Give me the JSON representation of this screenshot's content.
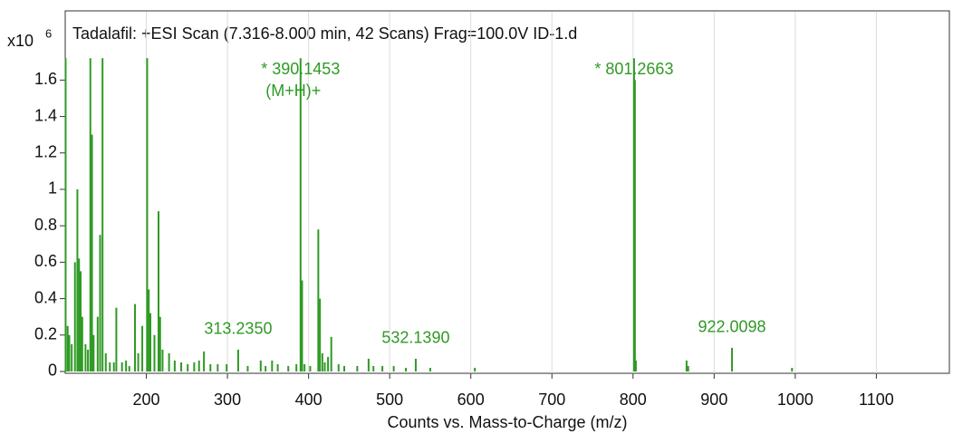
{
  "chart_data": {
    "type": "spectrum",
    "title": "Tadalafil: +ESI Scan (7.316-8.000 min, 42 Scans) Frag=100.0V ID-1.d",
    "y_multiplier": "x10",
    "y_exponent": "6",
    "x_label": "Counts vs. Mass-to-Charge (m/z)",
    "xlim": [
      100,
      1190
    ],
    "ylim": [
      -0.01,
      1.98
    ],
    "xticks": [
      200,
      300,
      400,
      500,
      600,
      700,
      800,
      900,
      1000,
      1100
    ],
    "yticks": [
      0,
      0.2,
      0.4,
      0.6,
      0.8,
      1,
      1.2,
      1.4,
      1.6
    ],
    "grid": "x",
    "series": [
      {
        "color": "#2f9a25",
        "x": [
          100.5,
          103,
          105,
          108,
          112,
          115,
          117,
          119,
          121,
          125,
          128,
          131,
          133,
          135,
          140,
          143,
          146,
          150,
          155,
          160,
          163,
          170,
          175,
          179,
          186,
          190,
          195,
          201,
          203,
          205,
          210,
          215,
          217,
          220,
          228,
          235,
          243,
          251,
          259,
          265,
          271,
          279,
          288,
          299,
          313.235,
          325,
          341,
          347,
          355,
          362,
          375,
          385,
          390.1453,
          392,
          395,
          402,
          412,
          414,
          417,
          420,
          424,
          428,
          437,
          444,
          460,
          474,
          480,
          491,
          505,
          520,
          532.139,
          550,
          605,
          801.2663,
          802.3,
          803.5,
          866,
          868,
          922.0098,
          996
        ],
        "values": [
          1.72,
          0.25,
          0.2,
          0.15,
          0.6,
          1.0,
          0.62,
          0.55,
          0.3,
          0.15,
          0.12,
          1.72,
          1.3,
          0.2,
          0.3,
          0.75,
          1.72,
          0.1,
          0.05,
          0.05,
          0.35,
          0.05,
          0.06,
          0.03,
          0.37,
          0.1,
          0.25,
          1.72,
          0.45,
          0.32,
          0.2,
          0.88,
          0.3,
          0.12,
          0.1,
          0.06,
          0.05,
          0.04,
          0.05,
          0.06,
          0.11,
          0.04,
          0.04,
          0.04,
          0.12,
          0.03,
          0.06,
          0.03,
          0.06,
          0.04,
          0.03,
          0.04,
          1.72,
          0.5,
          0.04,
          0.03,
          0.78,
          0.4,
          0.1,
          0.05,
          0.08,
          0.19,
          0.04,
          0.03,
          0.03,
          0.07,
          0.03,
          0.03,
          0.03,
          0.02,
          0.07,
          0.02,
          0.02,
          1.72,
          1.6,
          0.06,
          0.06,
          0.03,
          0.13,
          0.02
        ]
      }
    ],
    "annotations": [
      {
        "text": "* 390.1453",
        "sub": "(M+H)+",
        "x": 390.1453
      },
      {
        "text": "* 801.2663",
        "x": 801.2663
      },
      {
        "text": "313.2350",
        "x": 313.235
      },
      {
        "text": "532.1390",
        "x": 532.139
      },
      {
        "text": "922.0098",
        "x": 922.0098
      }
    ]
  }
}
